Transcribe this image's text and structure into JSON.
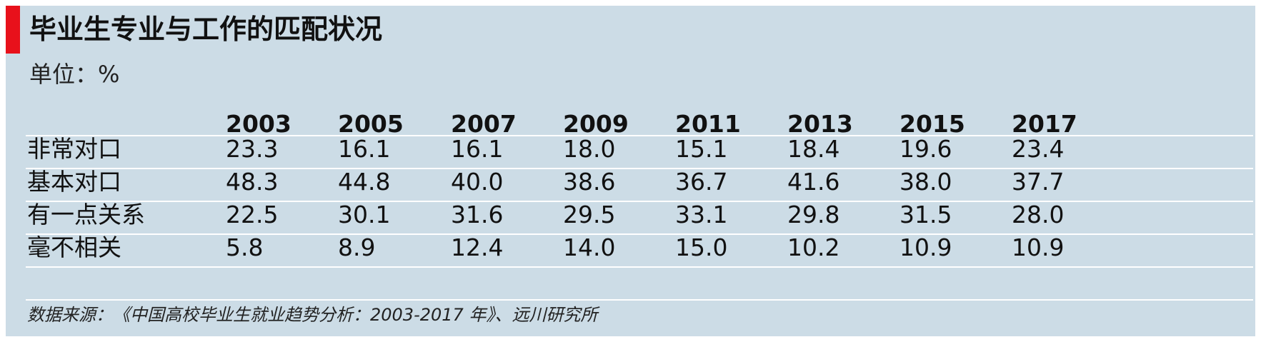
{
  "title": "毕业生专业与工作的匹配状况",
  "unit": "单位：%",
  "source": "数据来源：《中国高校毕业生就业趋势分析：2003-2017 年》、远川研究所",
  "chart_data": {
    "type": "table",
    "columns": [
      "2003",
      "2005",
      "2007",
      "2009",
      "2011",
      "2013",
      "2015",
      "2017"
    ],
    "rows": [
      {
        "label": "非常对口",
        "values": [
          "23.3",
          "16.1",
          "16.1",
          "18.0",
          "15.1",
          "18.4",
          "19.6",
          "23.4"
        ]
      },
      {
        "label": "基本对口",
        "values": [
          "48.3",
          "44.8",
          "40.0",
          "38.6",
          "36.7",
          "41.6",
          "38.0",
          "37.7"
        ]
      },
      {
        "label": "有一点关系",
        "values": [
          "22.5",
          "30.1",
          "31.6",
          "29.5",
          "33.1",
          "29.8",
          "31.5",
          "28.0"
        ]
      },
      {
        "label": "毫不相关",
        "values": [
          "5.8",
          "8.9",
          "12.4",
          "14.0",
          "15.0",
          "10.2",
          "10.9",
          "10.9"
        ]
      }
    ]
  },
  "colors": {
    "panel_bg": "#ccdce6",
    "accent": "#e8111b",
    "rule": "#ffffff",
    "text": "#111111"
  }
}
